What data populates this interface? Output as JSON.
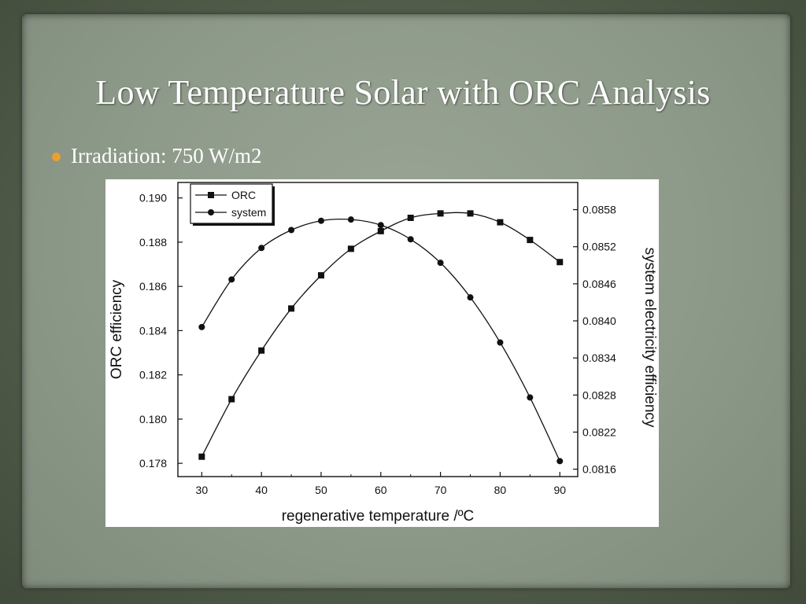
{
  "slide": {
    "title": "Low Temperature Solar with ORC Analysis",
    "bullets": [
      "Irradiation: 750 W/m2"
    ]
  },
  "colors": {
    "bullet": "#e8a030",
    "background": "#8d9989",
    "text": "#ffffff"
  },
  "chart_data": {
    "type": "line",
    "xlabel": "regenerative temperature  /ºC",
    "ylabel_left": "ORC efficiency",
    "ylabel_right": "system electricity efficiency",
    "x": [
      30,
      35,
      40,
      45,
      50,
      55,
      60,
      65,
      70,
      75,
      80,
      85,
      90
    ],
    "xticks": [
      30,
      40,
      50,
      60,
      70,
      80,
      90
    ],
    "xlim": [
      26,
      93
    ],
    "ylim_left": [
      0.1774,
      0.1907
    ],
    "ylim_right": [
      0.08148,
      0.08624
    ],
    "yticks_left": [
      "0.178",
      "0.180",
      "0.182",
      "0.184",
      "0.186",
      "0.188",
      "0.190"
    ],
    "yticks_right": [
      "0.0816",
      "0.0822",
      "0.0828",
      "0.0834",
      "0.0840",
      "0.0846",
      "0.0852",
      "0.0858"
    ],
    "legend_position": "top-left",
    "series": [
      {
        "name": "ORC",
        "axis": "left",
        "marker": "square",
        "values": [
          0.1783,
          0.1809,
          0.1831,
          0.185,
          0.1865,
          0.1877,
          0.1885,
          0.1891,
          0.1893,
          0.1893,
          0.1889,
          0.1881,
          0.1871
        ]
      },
      {
        "name": "system",
        "axis": "right",
        "marker": "circle",
        "values": [
          0.0839,
          0.08467,
          0.08518,
          0.08547,
          0.08562,
          0.08564,
          0.08555,
          0.08532,
          0.08494,
          0.08438,
          0.08365,
          0.08276,
          0.08173
        ]
      }
    ]
  }
}
